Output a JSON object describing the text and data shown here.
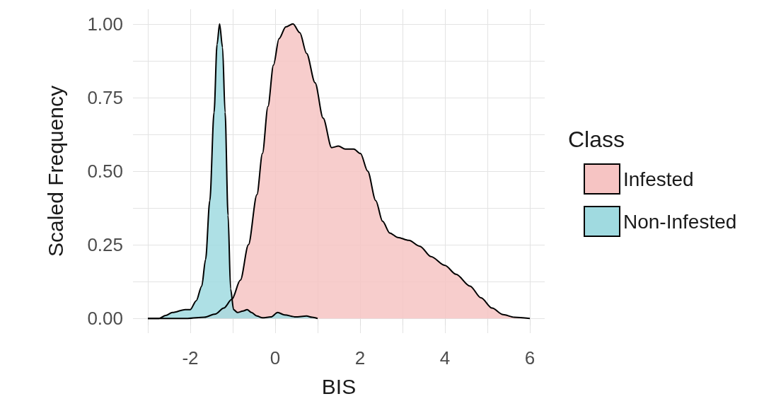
{
  "chart_data": {
    "type": "area",
    "xlabel": "BIS",
    "ylabel": "Scaled Frequency",
    "legend_title": "Class",
    "legend": "right",
    "grid": true,
    "xlim": [
      -3.35,
      6.35
    ],
    "ylim": [
      -0.05,
      1.05
    ],
    "xticks": [
      {
        "value": -3,
        "label": null
      },
      -2,
      {
        "value": -1,
        "label": null
      },
      0,
      {
        "value": 1,
        "label": null
      },
      2,
      {
        "value": 3,
        "label": null
      },
      4,
      {
        "value": 5,
        "label": null
      },
      6
    ],
    "yticks": [
      {
        "value": 0,
        "label": "0.00"
      },
      {
        "value": 0.125,
        "label": null
      },
      {
        "value": 0.25,
        "label": "0.25"
      },
      {
        "value": 0.375,
        "label": null
      },
      {
        "value": 0.5,
        "label": "0.50"
      },
      {
        "value": 0.625,
        "label": null
      },
      {
        "value": 0.75,
        "label": "0.75"
      },
      {
        "value": 0.875,
        "label": null
      },
      {
        "value": 1,
        "label": "1.00"
      }
    ],
    "series": [
      {
        "name": "Infested",
        "color": "#f6c4c3",
        "x": [
          -3,
          -2.06,
          -1.67,
          -1.41,
          -1.21,
          -1.02,
          -0.82,
          -0.63,
          -0.43,
          -0.3,
          -0.17,
          -0.04,
          0.09,
          0.25,
          0.42,
          0.58,
          0.74,
          0.94,
          1.13,
          1.33,
          1.49,
          1.65,
          1.85,
          2.01,
          2.18,
          2.37,
          2.53,
          2.7,
          2.89,
          3.15,
          3.41,
          3.67,
          4,
          4.26,
          4.59,
          4.85,
          5.11,
          5.37,
          5.63,
          6
        ],
        "values": [
          0,
          0,
          0.004,
          0.015,
          0.035,
          0.065,
          0.13,
          0.25,
          0.42,
          0.56,
          0.72,
          0.86,
          0.95,
          0.99,
          1,
          0.97,
          0.9,
          0.8,
          0.68,
          0.58,
          0.585,
          0.575,
          0.575,
          0.56,
          0.5,
          0.4,
          0.33,
          0.29,
          0.275,
          0.265,
          0.245,
          0.21,
          0.18,
          0.15,
          0.11,
          0.07,
          0.035,
          0.013,
          0.004,
          0
        ]
      },
      {
        "name": "Non-Infested",
        "color": "#a0dae0",
        "x": [
          -3,
          -2.74,
          -2.58,
          -2.42,
          -2.12,
          -2,
          -1.86,
          -1.73,
          -1.64,
          -1.54,
          -1.44,
          -1.37,
          -1.31,
          -1.24,
          -1.18,
          -1.11,
          -1.05,
          -0.98,
          -0.89,
          -0.76,
          -0.66,
          -0.56,
          -0.43,
          -0.3,
          -0.1,
          0.06,
          0.22,
          0.48,
          0.74,
          0.87,
          1
        ],
        "values": [
          0,
          0,
          0.01,
          0.02,
          0.03,
          0.03,
          0.06,
          0.11,
          0.2,
          0.4,
          0.7,
          0.93,
          1,
          0.92,
          0.7,
          0.35,
          0.1,
          0.03,
          0.02,
          0.025,
          0.03,
          0.02,
          0.008,
          0.002,
          0.005,
          0.02,
          0.012,
          0.005,
          0.008,
          0.004,
          0
        ]
      }
    ]
  }
}
